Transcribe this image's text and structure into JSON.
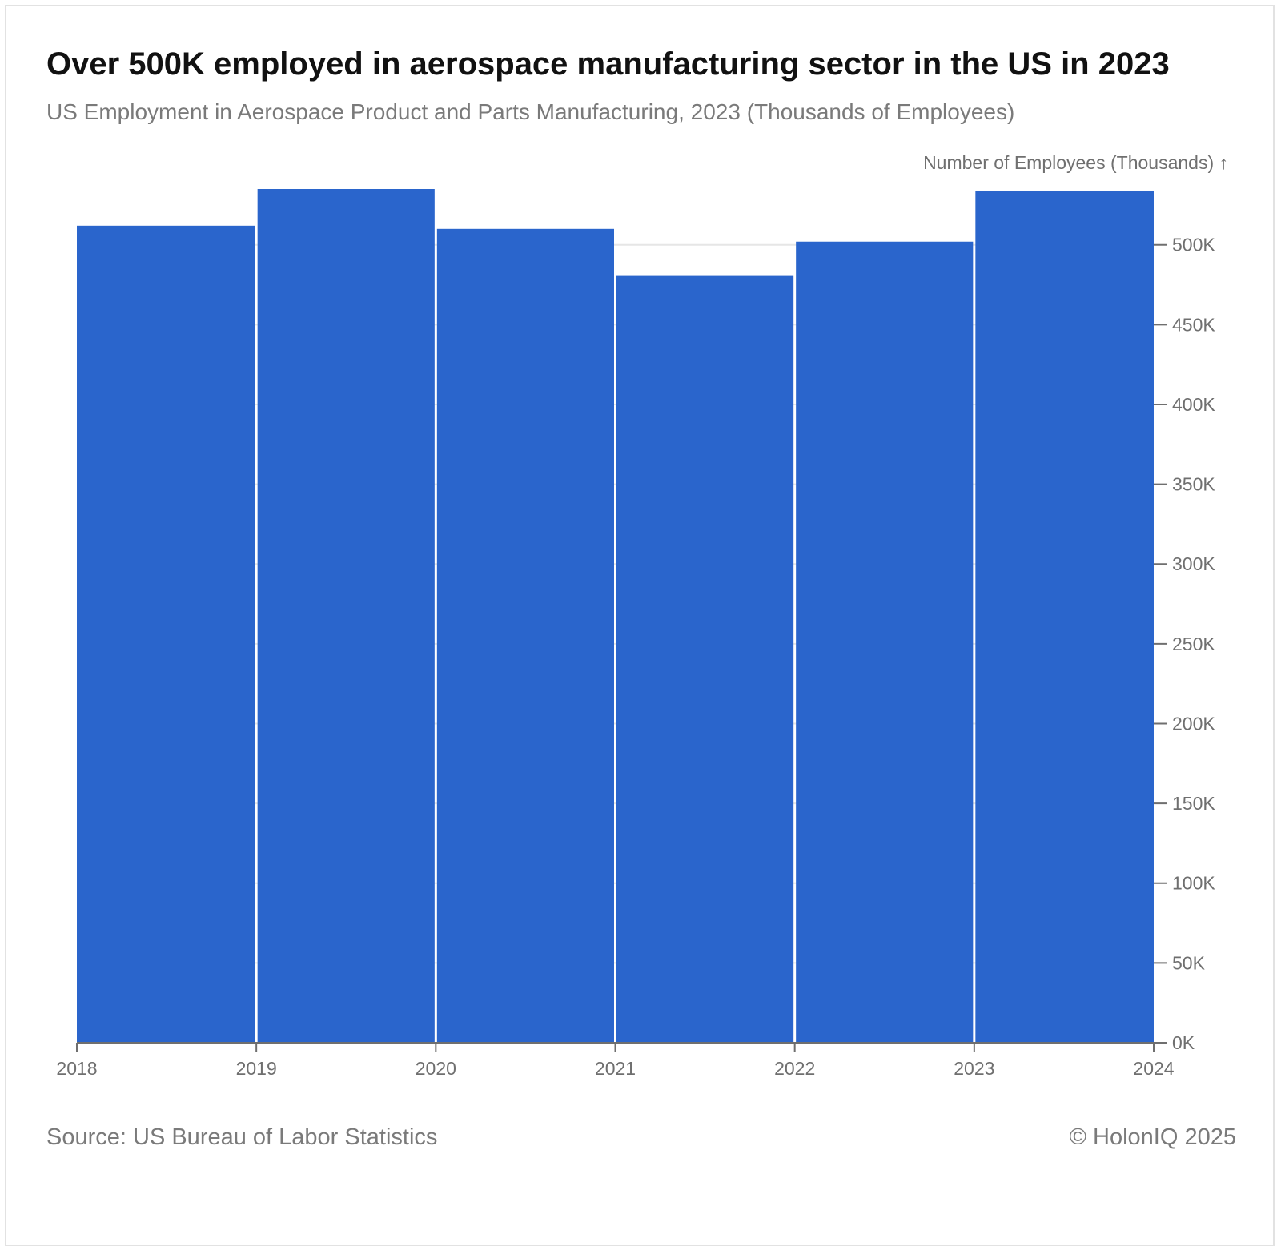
{
  "chart_data": {
    "type": "bar",
    "title": "Over 500K employed in aerospace manufacturing sector in the US in 2023",
    "subtitle": "US Employment in Aerospace Product and Parts Manufacturing, 2023 (Thousands of Employees)",
    "ylabel": "Number of Employees (Thousands) ↑",
    "xlabel": "",
    "bins": [
      [
        2018,
        2019
      ],
      [
        2019,
        2020
      ],
      [
        2020,
        2021
      ],
      [
        2021,
        2022
      ],
      [
        2022,
        2023
      ],
      [
        2023,
        2024
      ]
    ],
    "values": [
      512,
      535,
      510,
      481,
      502,
      534
    ],
    "x_ticks": [
      2018,
      2019,
      2020,
      2021,
      2022,
      2023,
      2024
    ],
    "x_tick_labels": [
      "2018",
      "2019",
      "2020",
      "2021",
      "2022",
      "2023",
      "2024"
    ],
    "y_ticks": [
      0,
      50,
      100,
      150,
      200,
      250,
      300,
      350,
      400,
      450,
      500
    ],
    "y_tick_labels": [
      "0K",
      "50K",
      "100K",
      "150K",
      "200K",
      "250K",
      "300K",
      "350K",
      "400K",
      "450K",
      "500K"
    ],
    "xlim": [
      2018,
      2024
    ],
    "ylim": [
      0,
      535
    ],
    "y_axis_side": "right",
    "grid": true,
    "bar_color": "#2a65cc",
    "grid_color": "#e6e6e6",
    "axis_color": "#6f6f6f"
  },
  "footer": {
    "source": "Source: US Bureau of Labor Statistics",
    "copyright": "© HolonIQ 2025"
  }
}
